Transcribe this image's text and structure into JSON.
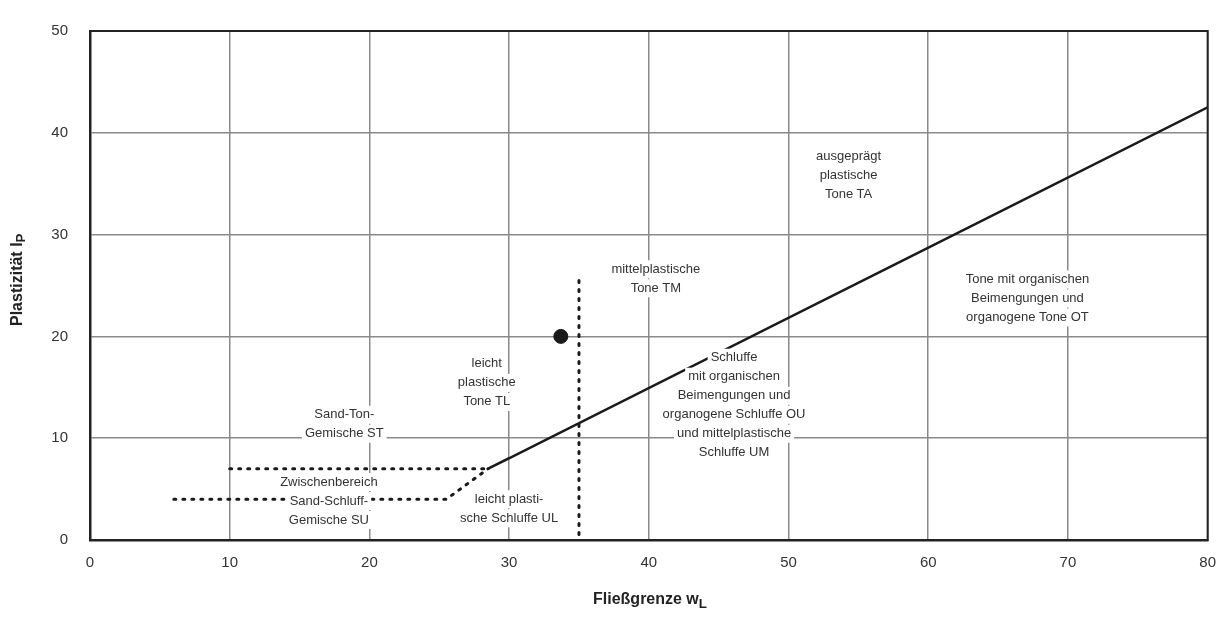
{
  "chart_data": {
    "type": "line",
    "xlabel": "Fließgrenze  w$_{L}$",
    "ylabel": "Plastizität  I$_{P}$",
    "xlim": [
      0,
      80
    ],
    "ylim": [
      0,
      50
    ],
    "xticks": [
      0,
      10,
      20,
      30,
      40,
      50,
      60,
      70,
      80
    ],
    "yticks": [
      0,
      10,
      20,
      30,
      40,
      50
    ],
    "grid": true,
    "series": [
      {
        "color": "#1a1a1a",
        "x": [
          28.5,
          80
        ],
        "values": [
          7,
          42.5
        ],
        "line_style": "solid",
        "marker": "none"
      },
      {
        "color": "#1a1a1a",
        "x": [
          10,
          28.5
        ],
        "values": [
          7,
          7
        ],
        "line_style": "dotted",
        "marker": "none"
      },
      {
        "color": "#1a1a1a",
        "x": [
          6,
          25.5,
          28.5
        ],
        "values": [
          4,
          4,
          7
        ],
        "line_style": "dotted",
        "marker": "none"
      },
      {
        "color": "#1a1a1a",
        "x": [
          35,
          35
        ],
        "values": [
          25.5,
          0
        ],
        "line_style": "dotted",
        "marker": "none"
      },
      {
        "type": "scatter",
        "color": "#1a1a1a",
        "x": [
          33.7
        ],
        "values": [
          20
        ],
        "marker": "circle"
      }
    ],
    "annotations": [
      "ausgeprägt\nplastische\nTone TA",
      "mittelplastische\nTone TM",
      "Tone mit organischen\nBeimengungen und\norganogene Tone OT",
      "leicht\nplastische\nTone TL",
      "Schluffe\nmit organischen\nBeimengungen und\norganogene Schluffe OU\nund mittelplastische\nSchluffe UM",
      "Sand-Ton-\nGemische ST",
      "Zwischenbereich\nSand-Schluff-\nGemische SU",
      "leicht plasti-\nsche Schluffe UL"
    ]
  }
}
